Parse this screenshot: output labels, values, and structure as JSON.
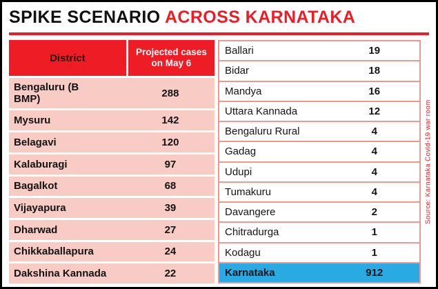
{
  "title": {
    "part1": "SPIKE SCENARIO",
    "part2": " ACROSS KARNATAKA"
  },
  "left_table": {
    "header_district": "District",
    "header_cases": "Projected cases on May 6",
    "rows": [
      {
        "district": "Bengaluru (B BMP)",
        "value": "288"
      },
      {
        "district": "Mysuru",
        "value": "142"
      },
      {
        "district": "Belagavi",
        "value": "120"
      },
      {
        "district": "Kalaburagi",
        "value": "97"
      },
      {
        "district": "Bagalkot",
        "value": "68"
      },
      {
        "district": "Vijayapura",
        "value": "39"
      },
      {
        "district": "Dharwad",
        "value": "27"
      },
      {
        "district": "Chikkaballapura",
        "value": "24"
      },
      {
        "district": "Dakshina Kannada",
        "value": "22"
      }
    ]
  },
  "right_table": {
    "rows": [
      {
        "district": "Ballari",
        "value": "19"
      },
      {
        "district": "Bidar",
        "value": "18"
      },
      {
        "district": "Mandya",
        "value": "16"
      },
      {
        "district": "Uttara Kannada",
        "value": "12"
      },
      {
        "district": "Bengaluru Rural",
        "value": "4"
      },
      {
        "district": "Gadag",
        "value": "4"
      },
      {
        "district": "Udupi",
        "value": "4"
      },
      {
        "district": "Tumakuru",
        "value": "4"
      },
      {
        "district": "Davangere",
        "value": "2"
      },
      {
        "district": "Chitradurga",
        "value": "1"
      },
      {
        "district": "Kodagu",
        "value": "1"
      }
    ],
    "total": {
      "district": "Karnataka",
      "value": "912"
    }
  },
  "source": "Source: Karnataka Covid-19 war room",
  "colors": {
    "accent_red": "#ee1c25",
    "row_pink": "#f9cbc5",
    "total_cyan": "#29aae2",
    "border_salmon": "#f0988f",
    "frame_black": "#000000"
  },
  "chart_data": {
    "type": "table",
    "title": "SPIKE SCENARIO ACROSS KARNATAKA",
    "columns": [
      "District",
      "Projected cases on May 6"
    ],
    "rows": [
      [
        "Bengaluru (B BMP)",
        288
      ],
      [
        "Mysuru",
        142
      ],
      [
        "Belagavi",
        120
      ],
      [
        "Kalaburagi",
        97
      ],
      [
        "Bagalkot",
        68
      ],
      [
        "Vijayapura",
        39
      ],
      [
        "Dharwad",
        27
      ],
      [
        "Chikkaballapura",
        24
      ],
      [
        "Dakshina Kannada",
        22
      ],
      [
        "Ballari",
        19
      ],
      [
        "Bidar",
        18
      ],
      [
        "Mandya",
        16
      ],
      [
        "Uttara Kannada",
        12
      ],
      [
        "Bengaluru Rural",
        4
      ],
      [
        "Gadag",
        4
      ],
      [
        "Udupi",
        4
      ],
      [
        "Tumakuru",
        4
      ],
      [
        "Davangere",
        2
      ],
      [
        "Chitradurga",
        1
      ],
      [
        "Kodagu",
        1
      ],
      [
        "Karnataka",
        912
      ]
    ],
    "source": "Source: Karnataka Covid-19 war room"
  }
}
